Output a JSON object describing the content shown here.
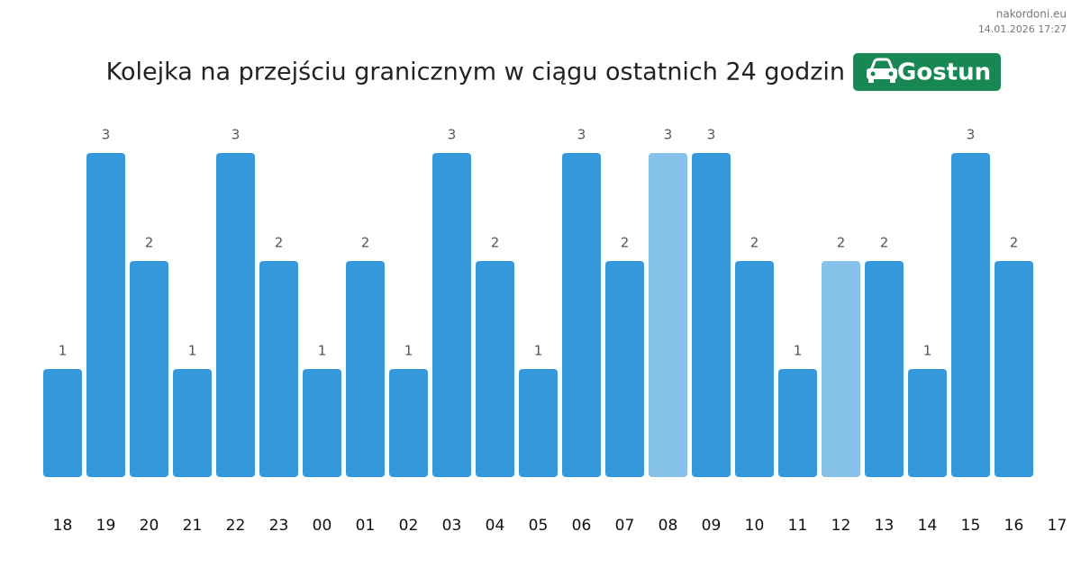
{
  "site": "nakordoni.eu",
  "timestamp": "14.01.2026 17:27",
  "chart_data": {
    "type": "bar",
    "title": "Kolejka na przejściu granicznym w ciągu ostatnich 24 godzin",
    "badge": "Gostun",
    "categories": [
      "18",
      "19",
      "20",
      "21",
      "22",
      "23",
      "00",
      "01",
      "02",
      "03",
      "04",
      "05",
      "06",
      "07",
      "08",
      "09",
      "10",
      "11",
      "12",
      "13",
      "14",
      "15",
      "16",
      "17"
    ],
    "values": [
      1,
      3,
      2,
      1,
      3,
      2,
      1,
      2,
      1,
      3,
      2,
      1,
      3,
      2,
      3,
      3,
      2,
      1,
      2,
      2,
      1,
      3,
      2,
      null
    ],
    "colors": [
      "#3498db",
      "#3498db",
      "#3498db",
      "#3498db",
      "#3498db",
      "#3498db",
      "#3498db",
      "#3498db",
      "#3498db",
      "#3498db",
      "#3498db",
      "#3498db",
      "#3498db",
      "#3498db",
      "#85c1e9",
      "#3498db",
      "#3498db",
      "#3498db",
      "#85c1e9",
      "#3498db",
      "#3498db",
      "#3498db",
      "#3498db",
      null
    ],
    "ylim": [
      0,
      3
    ]
  }
}
